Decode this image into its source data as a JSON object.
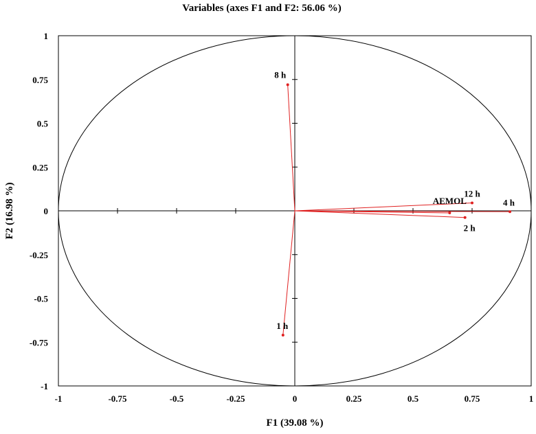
{
  "chart_data": {
    "type": "scatter",
    "title": "Variables (axes F1 and F2: 56.06 %)",
    "xlabel": "F1 (39.08 %)",
    "ylabel": "F2 (16.98 %)",
    "xlim": [
      -1,
      1
    ],
    "ylim": [
      -1,
      1
    ],
    "x_ticks": [
      "-1",
      "-0.75",
      "-0.5",
      "-0.25",
      "0",
      "0.25",
      "0.5",
      "0.75",
      "1"
    ],
    "y_ticks": [
      "1",
      "0.75",
      "0.5",
      "0.25",
      "0",
      "-0.25",
      "-0.5",
      "-0.75",
      "-1"
    ],
    "grid": false,
    "correlation_circle": true,
    "vector_color": "#e02020",
    "points": [
      {
        "label": "8 h",
        "x": -0.03,
        "y": 0.72
      },
      {
        "label": "12 h",
        "x": 0.75,
        "y": 0.045
      },
      {
        "label": "AEMOL",
        "x": 0.655,
        "y": -0.012
      },
      {
        "label": "4 h",
        "x": 0.91,
        "y": -0.005
      },
      {
        "label": "2 h",
        "x": 0.72,
        "y": -0.038
      },
      {
        "label": "1 h",
        "x": -0.05,
        "y": -0.71
      }
    ]
  }
}
